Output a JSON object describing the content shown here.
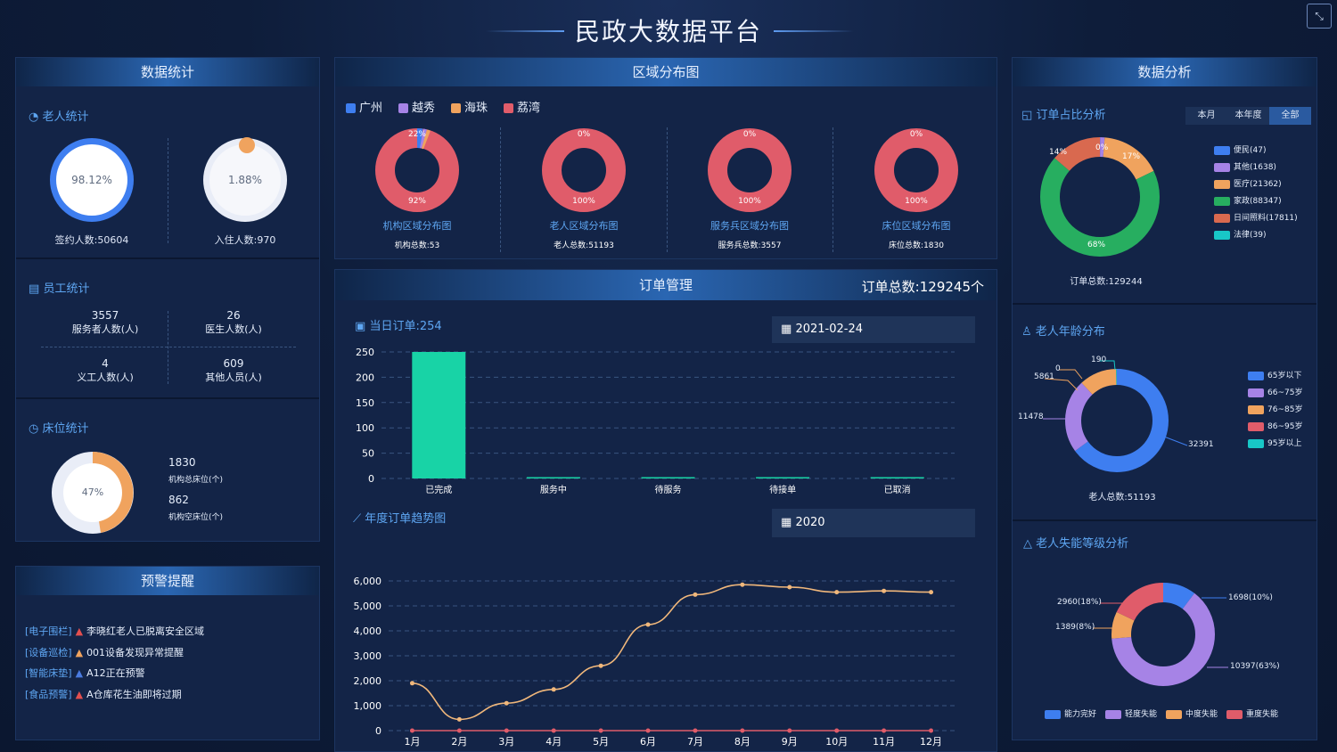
{
  "title": "民政大数据平台",
  "panels": {
    "stats": "数据统计",
    "region": "区域分布图",
    "analysis": "数据分析",
    "alerts": "预警提醒",
    "orders": "订单管理"
  },
  "elderly": {
    "title": "老人统计",
    "signed_pct": "98.12%",
    "signed_label": "签约人数:50604",
    "stay_pct": "1.88%",
    "stay_label": "入住人数:970"
  },
  "staff": {
    "title": "员工统计",
    "items": [
      {
        "value": "3557",
        "label": "服务者人数(人)"
      },
      {
        "value": "26",
        "label": "医生人数(人)"
      },
      {
        "value": "4",
        "label": "义工人数(人)"
      },
      {
        "value": "609",
        "label": "其他人员(人)"
      }
    ]
  },
  "beds": {
    "title": "床位统计",
    "pct": "47%",
    "total_value": "1830",
    "total_label": "机构总床位(个)",
    "empty_value": "862",
    "empty_label": "机构空床位(个)"
  },
  "alerts": [
    {
      "tag": "[电子围栏]",
      "text": "李晓红老人已脱离安全区域",
      "color": "#e24f4f"
    },
    {
      "tag": "[设备巡检]",
      "text": "001设备发现异常提醒",
      "color": "#f0a35e"
    },
    {
      "tag": "[智能床垫]",
      "text": "A12正在预警",
      "color": "#4a7be0"
    },
    {
      "tag": "[食品预警]",
      "text": "A仓库花生油即将过期",
      "color": "#e24f4f"
    }
  ],
  "region": {
    "legend": [
      {
        "name": "广州",
        "color": "#3e7ef0"
      },
      {
        "name": "越秀",
        "color": "#a683e6"
      },
      {
        "name": "海珠",
        "color": "#f0a35e"
      },
      {
        "name": "荔湾",
        "color": "#e05c6a"
      }
    ],
    "donuts": [
      {
        "top": "22%",
        "bottom": "92%",
        "name": "机构区域分布图",
        "total": "机构总数:53"
      },
      {
        "top": "0%",
        "bottom": "100%",
        "name": "老人区域分布图",
        "total": "老人总数:51193"
      },
      {
        "top": "0%",
        "bottom": "100%",
        "name": "服务兵区域分布图",
        "total": "服务兵总数:3557"
      },
      {
        "top": "0%",
        "bottom": "100%",
        "name": "床位区域分布图",
        "total": "床位总数:1830"
      }
    ]
  },
  "orders": {
    "total": "订单总数:129245个",
    "today_title": "当日订单:254",
    "date": "2021-02-24",
    "year_title": "年度订单趋势图",
    "year": "2020"
  },
  "chart_data": [
    {
      "type": "bar",
      "categories": [
        "已完成",
        "服务中",
        "待服务",
        "待接单",
        "已取消"
      ],
      "values": [
        250,
        1,
        0,
        0,
        2
      ],
      "ylim": [
        0,
        250
      ],
      "yticks": [
        0,
        50,
        100,
        150,
        200,
        250
      ],
      "color": "#18d3a6"
    },
    {
      "type": "line",
      "categories": [
        "1月",
        "2月",
        "3月",
        "4月",
        "5月",
        "6月",
        "7月",
        "8月",
        "9月",
        "10月",
        "11月",
        "12月"
      ],
      "series": [
        {
          "values": [
            1900,
            450,
            1100,
            1650,
            2600,
            4250,
            5450,
            5850,
            5750,
            5550,
            5600,
            5550
          ],
          "color": "#f0b77b"
        },
        {
          "values": [
            0,
            0,
            0,
            0,
            0,
            0,
            0,
            0,
            0,
            0,
            0,
            0
          ],
          "color": "#e05c6a"
        }
      ],
      "ylim": [
        0,
        6000
      ],
      "yticks": [
        "0",
        "1,000",
        "2,000",
        "3,000",
        "4,000",
        "5,000",
        "6,000"
      ]
    }
  ],
  "analysis": {
    "order_title": "订单占比分析",
    "tabs": [
      "本月",
      "本年度",
      "全部"
    ],
    "order_legend": [
      {
        "name": "便民(47)",
        "color": "#3e7ef0"
      },
      {
        "name": "其他(1638)",
        "color": "#a683e6"
      },
      {
        "name": "医疗(21362)",
        "color": "#f0a35e"
      },
      {
        "name": "家政(88347)",
        "color": "#27ae60"
      },
      {
        "name": "日间照料(17811)",
        "color": "#d9694f"
      },
      {
        "name": "法律(39)",
        "color": "#18c7c7"
      }
    ],
    "order_labels": {
      "a": "14%",
      "b": "0%",
      "c": "17%",
      "d": "68%"
    },
    "order_total": "订单总数:129244",
    "age_title": "老人年龄分布",
    "age_legend": [
      {
        "name": "65岁以下",
        "color": "#3e7ef0"
      },
      {
        "name": "66~75岁",
        "color": "#a683e6"
      },
      {
        "name": "76~85岁",
        "color": "#f0a35e"
      },
      {
        "name": "86~95岁",
        "color": "#e05c6a"
      },
      {
        "name": "95岁以上",
        "color": "#18c7c7"
      }
    ],
    "age_labels": {
      "a": "190",
      "b": "0",
      "c": "5861",
      "d": "11478",
      "e": "32391"
    },
    "age_total": "老人总数:51193",
    "ability_title": "老人失能等级分析",
    "ability_labels": {
      "a": "2960(18%)",
      "b": "1698(10%)",
      "c": "1389(8%)",
      "d": "10397(63%)"
    },
    "ability_legend": [
      {
        "name": "能力完好",
        "color": "#3e7ef0"
      },
      {
        "name": "轻度失能",
        "color": "#a683e6"
      },
      {
        "name": "中度失能",
        "color": "#f0a35e"
      },
      {
        "name": "重度失能",
        "color": "#e05c6a"
      }
    ]
  }
}
